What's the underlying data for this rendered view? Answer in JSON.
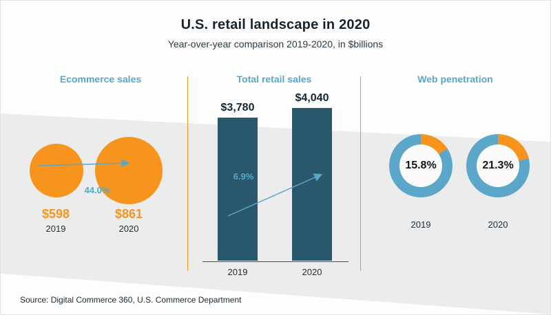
{
  "header": {
    "title": "U.S. retail landscape in 2020",
    "subtitle": "Year-over-year comparison 2019-2020, in $billions"
  },
  "panels": {
    "ecommerce": {
      "title": "Ecommerce sales",
      "growth_label": "44.0%",
      "items": [
        {
          "value": "$598",
          "year": "2019"
        },
        {
          "value": "$861",
          "year": "2020"
        }
      ]
    },
    "retail": {
      "title": "Total retail sales",
      "growth_label": "6.9%",
      "items": [
        {
          "value": "$3,780",
          "year": "2019"
        },
        {
          "value": "$4,040",
          "year": "2020"
        }
      ]
    },
    "web": {
      "title": "Web penetration",
      "items": [
        {
          "value": "15.8%",
          "year": "2019"
        },
        {
          "value": "21.3%",
          "year": "2020"
        }
      ]
    }
  },
  "footer": {
    "source": "Source: Digital Commerce 360, U.S. Commerce Department"
  },
  "colors": {
    "orange": "#f7941d",
    "blue": "#5aa7c9",
    "teal": "#29586c",
    "band": "#ececec",
    "text_dark": "#17242e"
  },
  "chart_data": [
    {
      "type": "bar",
      "variant": "proportional-bubbles",
      "title": "Ecommerce sales",
      "categories": [
        "2019",
        "2020"
      ],
      "values": [
        598,
        861
      ],
      "unit": "$billions",
      "annotation": "44.0%"
    },
    {
      "type": "bar",
      "title": "Total retail sales",
      "categories": [
        "2019",
        "2020"
      ],
      "values": [
        3780,
        4040
      ],
      "unit": "$billions",
      "annotation": "6.9%",
      "ylim": [
        0,
        4040
      ],
      "grid": false
    },
    {
      "type": "pie",
      "variant": "donut",
      "title": "Web penetration",
      "categories": [
        "2019",
        "2020"
      ],
      "values": [
        15.8,
        21.3
      ],
      "unit": "%"
    }
  ]
}
